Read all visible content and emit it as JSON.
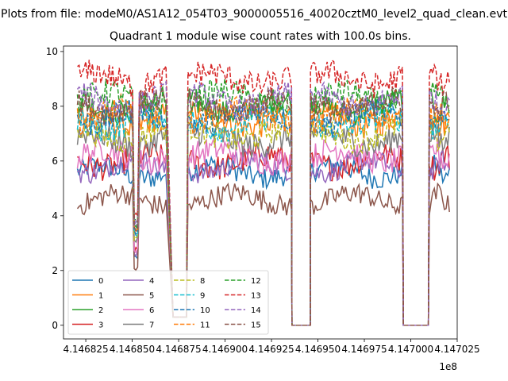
{
  "figure": {
    "suptitle": "Plots from file: modeM0/AS1A12_054T03_9000005516_40020cztM0_level2_quad_clean.evt"
  },
  "chart_data": {
    "type": "line",
    "title": "Quadrant 1 module wise count rates with 100.0s bins.",
    "xlabel": "",
    "ylabel": "",
    "x_offset_label": "1e8",
    "xlim": [
      4.146813,
      4.147025
    ],
    "ylim": [
      -0.5,
      10.2
    ],
    "x_ticks": [
      4.146825,
      4.14685,
      4.146875,
      4.1469,
      4.146925,
      4.14695,
      4.146975,
      4.147,
      4.147025
    ],
    "x_tick_labels": [
      "4.146825",
      "4.146850",
      "4.146875",
      "4.146900",
      "4.146925",
      "4.146950",
      "4.146975",
      "4.147000",
      "4.147025"
    ],
    "y_ticks": [
      0,
      2,
      4,
      6,
      8,
      10
    ],
    "y_tick_labels": [
      "0",
      "2",
      "4",
      "6",
      "8",
      "10"
    ],
    "segments": [
      {
        "x_start": 4.1468205,
        "x_end": 4.146869,
        "note": "active"
      },
      {
        "x_start": 4.146872,
        "x_end": 4.14688,
        "note": "near-zero gap"
      },
      {
        "x_start": 4.14688,
        "x_end": 4.146936,
        "note": "active"
      },
      {
        "x_start": 4.146936,
        "x_end": 4.146946,
        "note": "zero gap"
      },
      {
        "x_start": 4.146946,
        "x_end": 4.146996,
        "note": "active"
      },
      {
        "x_start": 4.146996,
        "x_end": 4.14701,
        "note": "zero gap"
      },
      {
        "x_start": 4.14701,
        "x_end": 4.147021,
        "note": "active"
      }
    ],
    "grid": false,
    "legend": {
      "position": "lower-left",
      "columns": 4
    },
    "series": [
      {
        "name": "0",
        "color": "#1f77b4",
        "dash": "solid",
        "mean": 5.6,
        "noise": 0.25
      },
      {
        "name": "1",
        "color": "#ff7f0e",
        "dash": "solid",
        "mean": 7.5,
        "noise": 0.3
      },
      {
        "name": "2",
        "color": "#2ca02c",
        "dash": "solid",
        "mean": 8.0,
        "noise": 0.3
      },
      {
        "name": "3",
        "color": "#d62728",
        "dash": "solid",
        "mean": 6.0,
        "noise": 0.3
      },
      {
        "name": "4",
        "color": "#9467bd",
        "dash": "solid",
        "mean": 5.8,
        "noise": 0.25
      },
      {
        "name": "5",
        "color": "#8c564b",
        "dash": "solid",
        "mean": 4.6,
        "noise": 0.25
      },
      {
        "name": "6",
        "color": "#e377c2",
        "dash": "solid",
        "mean": 6.2,
        "noise": 0.3
      },
      {
        "name": "7",
        "color": "#7f7f7f",
        "dash": "solid",
        "mean": 6.8,
        "noise": 0.3
      },
      {
        "name": "8",
        "color": "#bcbd22",
        "dash": "dashed",
        "mean": 7.0,
        "noise": 0.3
      },
      {
        "name": "9",
        "color": "#17becf",
        "dash": "dashed",
        "mean": 7.4,
        "noise": 0.3
      },
      {
        "name": "10",
        "color": "#1f77b4",
        "dash": "dashed",
        "mean": 7.6,
        "noise": 0.3
      },
      {
        "name": "11",
        "color": "#ff7f0e",
        "dash": "dashed",
        "mean": 7.7,
        "noise": 0.3
      },
      {
        "name": "12",
        "color": "#2ca02c",
        "dash": "dashed",
        "mean": 8.3,
        "noise": 0.3
      },
      {
        "name": "13",
        "color": "#d62728",
        "dash": "dashed",
        "mean": 9.0,
        "noise": 0.3
      },
      {
        "name": "14",
        "color": "#9467bd",
        "dash": "dashed",
        "mean": 8.2,
        "noise": 0.3
      },
      {
        "name": "15",
        "color": "#8c564b",
        "dash": "dashed",
        "mean": 8.0,
        "noise": 0.3
      }
    ]
  }
}
